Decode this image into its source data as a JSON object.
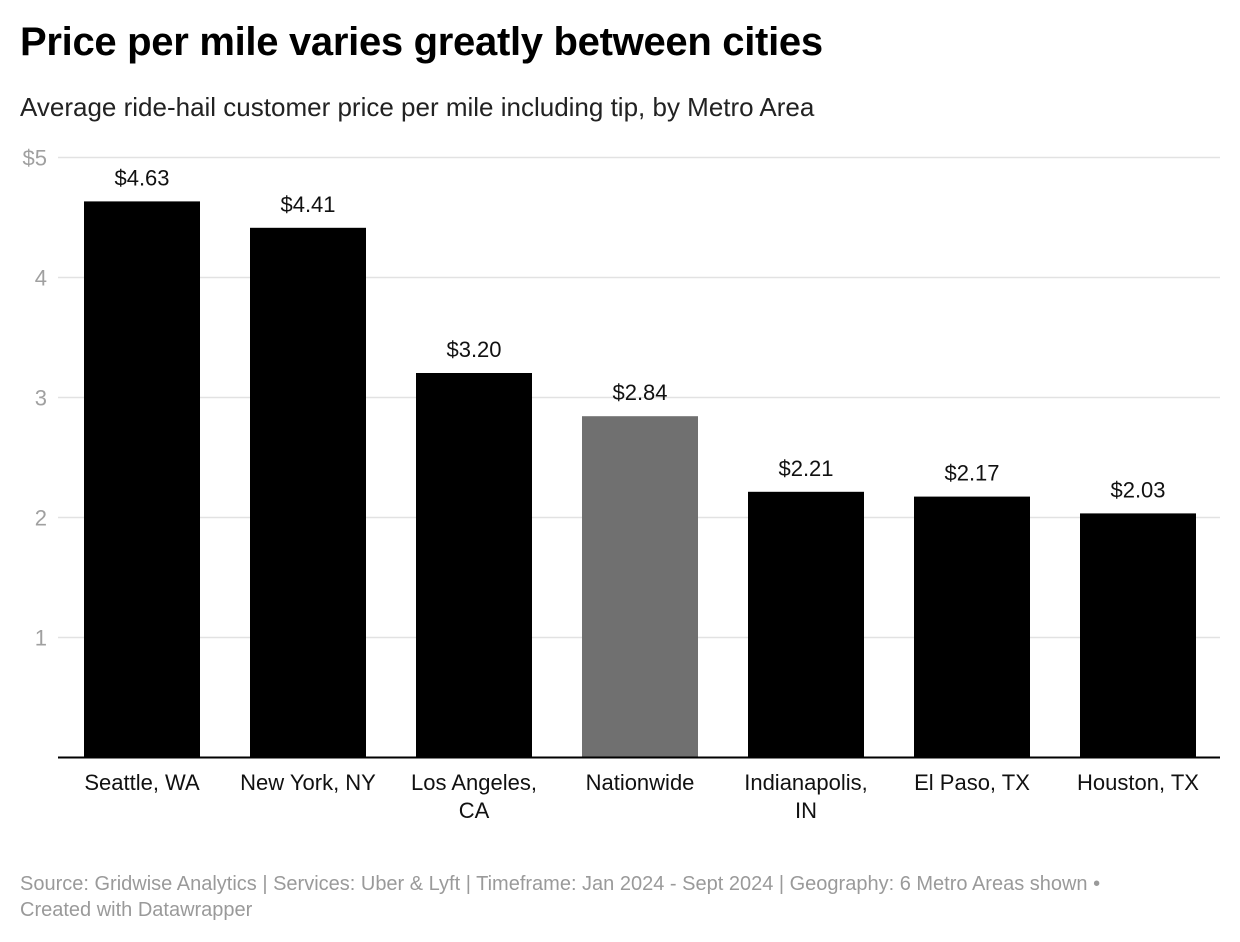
{
  "title": "Price per mile varies greatly between cities",
  "subtitle": "Average ride-hail customer price per mile including tip, by Metro Area",
  "chart_data": {
    "type": "bar",
    "categories": [
      [
        "Seattle, WA"
      ],
      [
        "New York, NY"
      ],
      [
        "Los Angeles,",
        "CA"
      ],
      [
        "Nationwide"
      ],
      [
        "Indianapolis,",
        "IN"
      ],
      [
        "El Paso, TX"
      ],
      [
        "Houston, TX"
      ]
    ],
    "values": [
      4.63,
      4.41,
      3.2,
      2.84,
      2.21,
      2.17,
      2.03
    ],
    "value_labels": [
      "$4.63",
      "$4.41",
      "$3.20",
      "$2.84",
      "$2.21",
      "$2.17",
      "$2.03"
    ],
    "highlight_index": 3,
    "colors": {
      "bar": "#000000",
      "highlight": "#707070",
      "grid": "#e2e2e2",
      "tick_text": "#a0a0a0"
    },
    "ylim": [
      0,
      5
    ],
    "yticks": [
      1,
      2,
      3,
      4,
      5
    ],
    "ytick_labels": [
      "1",
      "2",
      "3",
      "4",
      "$5"
    ],
    "grid": true
  },
  "footer": {
    "line1": "Source: Gridwise Analytics | Services: Uber & Lyft | Timeframe: Jan 2024 - Sept 2024 | Geography: 6 Metro Areas shown •",
    "line2": "Created with Datawrapper"
  }
}
